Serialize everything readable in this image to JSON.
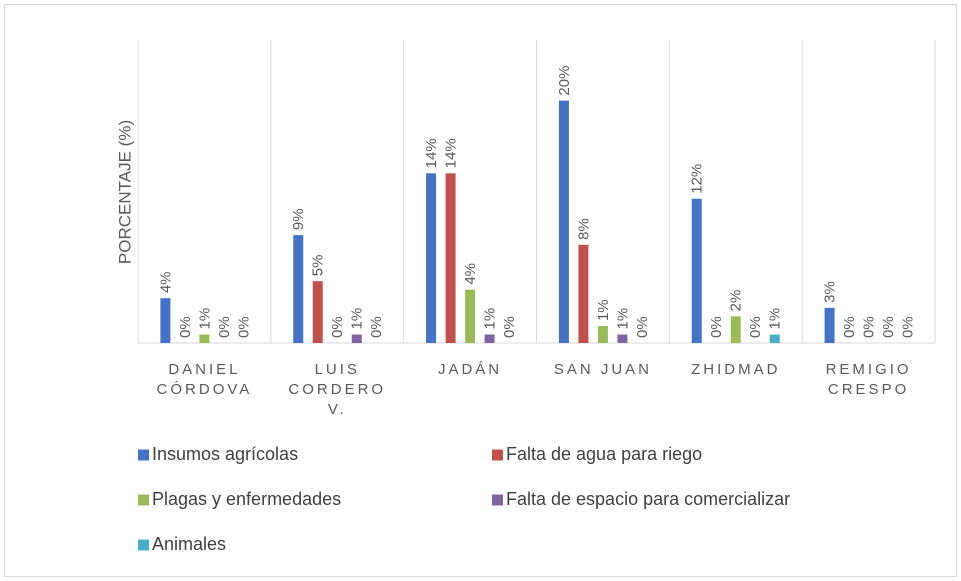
{
  "chart_data": {
    "type": "bar",
    "y_label": "PORCENTAJE (%)",
    "categories": [
      "DANIEL CÓRDOVA",
      "LUIS CORDERO V.",
      "JADÁN",
      "SAN JUAN",
      "ZHIDMAD",
      "REMIGIO CRESPO"
    ],
    "series": [
      {
        "name": "Insumos agrícolas",
        "color": "#4472c4",
        "values": [
          3.7,
          8.9,
          14,
          20,
          11.9,
          2.9
        ],
        "value_labels": [
          "4%",
          "9%",
          "14%",
          "20%",
          "12%",
          "3%"
        ]
      },
      {
        "name": "Falta de agua para riego",
        "color": "#c0504d",
        "values": [
          0,
          5.1,
          14,
          8.1,
          0,
          0
        ],
        "value_labels": [
          "0%",
          "5%",
          "14%",
          "8%",
          "0%",
          "0%"
        ]
      },
      {
        "name": "Plagas y enfermedades",
        "color": "#9bbb59",
        "values": [
          0.7,
          0,
          4.4,
          1.4,
          2.2,
          0
        ],
        "value_labels": [
          "1%",
          "0%",
          "4%",
          "1%",
          "2%",
          "0%"
        ]
      },
      {
        "name": "Falta de espacio para comercializar",
        "color": "#8064a2",
        "values": [
          0,
          0.7,
          0.7,
          0.7,
          0,
          0
        ],
        "value_labels": [
          "0%",
          "1%",
          "1%",
          "1%",
          "0%",
          "0%"
        ]
      },
      {
        "name": "Animales",
        "color": "#4bacc6",
        "values": [
          0,
          0,
          0,
          0,
          0.7,
          0
        ],
        "value_labels": [
          "0%",
          "0%",
          "0%",
          "0%",
          "1%",
          "0%"
        ]
      }
    ],
    "ylim": [
      0,
      25
    ],
    "grid": true,
    "legend": "bottom"
  }
}
